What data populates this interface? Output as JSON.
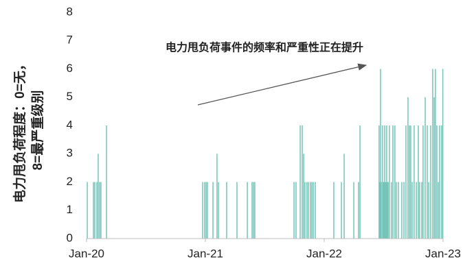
{
  "chart_data": {
    "type": "bar",
    "annotation": "电力甩负荷事件的频率和严重性正在提升",
    "ylabel": [
      "电力甩负荷程度：0=无，",
      "8=最严重级别"
    ],
    "x": [
      2020.006,
      2020.058,
      2020.069,
      2020.087,
      2020.098,
      2020.11,
      2020.121,
      2020.168,
      2020.977,
      2020.994,
      2021.006,
      2021.017,
      2021.064,
      2021.098,
      2021.11,
      2021.179,
      2021.266,
      2021.353,
      2021.393,
      2021.405,
      2021.416,
      2021.746,
      2021.763,
      2021.798,
      2021.815,
      2021.827,
      2021.838,
      2021.855,
      2021.867,
      2021.884,
      2021.896,
      2021.908,
      2021.925,
      2022.081,
      2022.145,
      2022.168,
      2022.249,
      2022.289,
      2022.301,
      2022.462,
      2022.468,
      2022.474,
      2022.48,
      2022.491,
      2022.497,
      2022.503,
      2022.509,
      2022.514,
      2022.52,
      2022.526,
      2022.532,
      2022.538,
      2022.549,
      2022.566,
      2022.578,
      2022.595,
      2022.607,
      2022.624,
      2022.653,
      2022.671,
      2022.688,
      2022.705,
      2022.717,
      2022.728,
      2022.74,
      2022.757,
      2022.775,
      2022.792,
      2022.803,
      2022.821,
      2022.832,
      2022.85,
      2022.867,
      2022.879,
      2022.896,
      2022.913,
      2022.925,
      2022.936,
      2022.948,
      2022.96,
      2022.971,
      2022.988,
      2022.998
    ],
    "values": [
      2,
      2,
      2,
      2,
      3,
      2,
      2,
      4,
      2,
      2,
      2,
      2,
      2,
      3,
      2,
      2,
      2,
      2,
      2,
      2,
      2,
      2,
      2,
      4,
      4,
      3,
      2,
      2,
      2,
      2,
      2,
      2,
      2,
      2,
      2,
      3,
      2,
      2,
      4,
      4,
      2,
      6,
      2,
      4,
      2,
      2,
      4,
      2,
      2,
      4,
      2,
      2,
      4,
      2,
      4,
      4,
      2,
      2,
      2,
      2,
      4,
      5,
      4,
      4,
      2,
      4,
      2,
      4,
      2,
      2,
      4,
      5,
      4,
      2,
      4,
      6,
      5,
      6,
      4,
      2,
      4,
      4,
      6
    ],
    "color": "#74c4b8",
    "xlim": [
      2019.99,
      2023.01
    ],
    "xticks": [
      {
        "value": 2020,
        "label": "Jan-20"
      },
      {
        "value": 2021,
        "label": "Jan-21"
      },
      {
        "value": 2022,
        "label": "Jan-22"
      },
      {
        "value": 2023,
        "label": "Jan-23"
      }
    ],
    "ylim": [
      0,
      8
    ],
    "yticks": [
      0,
      1,
      2,
      3,
      4,
      5,
      6,
      7,
      8
    ],
    "grid": false
  }
}
